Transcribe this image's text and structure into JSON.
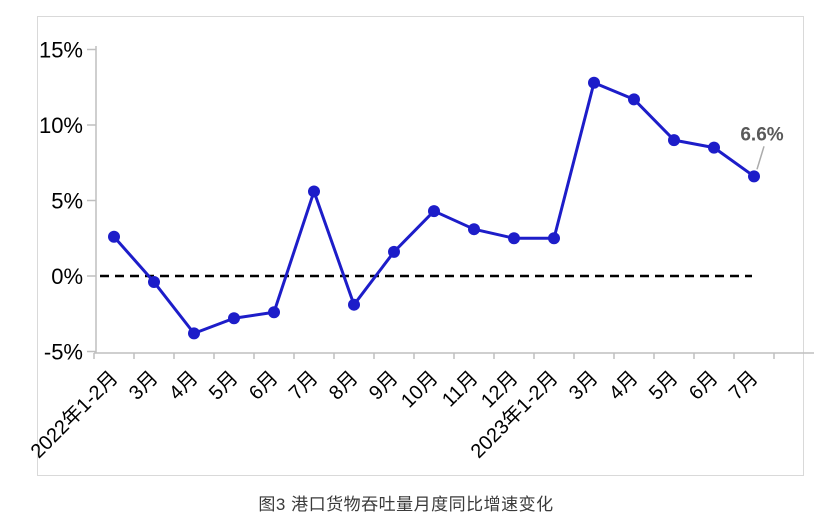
{
  "caption": "图3 港口货物吞吐量月度同比增速变化",
  "chart_data": {
    "type": "line",
    "title": "图3 港口货物吞吐量月度同比增速变化",
    "categories": [
      "2022年1-2月",
      "3月",
      "4月",
      "5月",
      "6月",
      "7月",
      "8月",
      "9月",
      "10月",
      "11月",
      "12月",
      "2023年1-2月",
      "3月",
      "4月",
      "5月",
      "6月",
      "7月"
    ],
    "series": [
      {
        "name": "港口货物吞吐量月度同比增速",
        "values": [
          2.6,
          -0.4,
          -3.8,
          -2.8,
          -2.4,
          5.6,
          -1.9,
          1.6,
          4.3,
          3.1,
          2.5,
          2.5,
          12.8,
          11.7,
          9.0,
          8.5,
          6.6
        ],
        "color": "#1d1dc9",
        "marker": "circle"
      }
    ],
    "unit": "%",
    "ylim": [
      -5,
      15
    ],
    "yticks": [
      15,
      10,
      5,
      0,
      -5
    ],
    "ytick_labels": [
      "15%",
      "10%",
      "5%",
      "0%",
      "-5%"
    ],
    "xlabel": "",
    "ylabel": "",
    "grid": false,
    "legend_position": "none",
    "zero_line": {
      "value": 0,
      "style": "dashed",
      "color": "#000000"
    },
    "annotation": {
      "text": "6.6%",
      "series": 0,
      "index": 16,
      "color": "#595959"
    }
  },
  "colors": {
    "background": "#ffffff",
    "frame_border": "#d9d9d9",
    "axis": "#bfbfbf",
    "series_blue": "#1d1dc9",
    "tick_label": "#000000",
    "annotation_text": "#595959",
    "annotation_leader": "#ababab",
    "caption_text": "#3a3a3a"
  }
}
